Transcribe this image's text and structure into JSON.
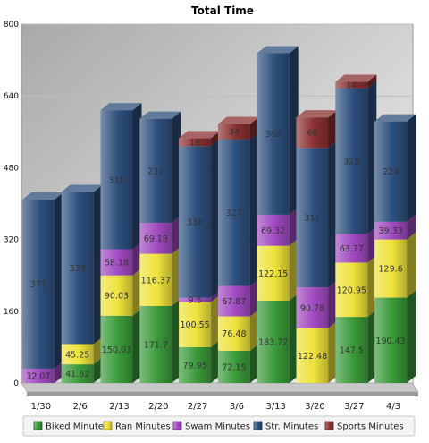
{
  "chart_data": {
    "type": "bar",
    "stacked": true,
    "style": "3d",
    "title": "Total Time",
    "categories": [
      "1/30",
      "2/6",
      "2/13",
      "2/20",
      "2/27",
      "3/6",
      "3/13",
      "3/20",
      "3/27",
      "4/3"
    ],
    "yticks": [
      "0",
      "160",
      "320",
      "480",
      "640",
      "800"
    ],
    "ylim": [
      0,
      800
    ],
    "grid": true,
    "legend_position": "bottom",
    "series": [
      {
        "name": "Biked Minutes",
        "color": "#3a9a3a",
        "values": [
          0,
          41.62,
          150.03,
          171.7,
          79.95,
          72.15,
          183.72,
          0,
          147.5,
          190.43
        ],
        "labels": [
          "",
          "41.62",
          "150.03",
          "171.7",
          "79.95",
          "72.15",
          "183.72",
          "",
          "147.5",
          "190.43"
        ]
      },
      {
        "name": "Ran Minutes",
        "color": "#eee23a",
        "values": [
          0,
          45.25,
          90.03,
          116.37,
          100.55,
          76.48,
          122.15,
          122.48,
          120.95,
          129.6
        ],
        "labels": [
          "",
          "45.25",
          "90.03",
          "116.37",
          "100.55",
          "76.48",
          "122.15",
          "122.48",
          "120.95",
          "129.6"
        ]
      },
      {
        "name": "Swam Minutes",
        "color": "#a04ac0",
        "values": [
          32.07,
          0,
          58.18,
          69.18,
          9.5,
          67.87,
          69.32,
          90.78,
          63.77,
          39.33
        ],
        "labels": [
          "32.07",
          "",
          "58.18",
          "69.18",
          "9.5",
          "67.87",
          "69.32",
          "90.78",
          "63.77",
          "39.33"
        ]
      },
      {
        "name": "Str. Minutes",
        "color": "#2d4f7c",
        "values": [
          377,
          339,
          310,
          232,
          338,
          327,
          360,
          311,
          325,
          224
        ],
        "labels": [
          "377",
          "339",
          "310",
          "232",
          "338",
          "327",
          "360",
          "311",
          "325",
          "224"
        ]
      },
      {
        "name": "Sports Minutes",
        "color": "#8a3030",
        "values": [
          0,
          0,
          0,
          0,
          18,
          34,
          0,
          68,
          14,
          0
        ],
        "labels": [
          "",
          "",
          "",
          "",
          "18",
          "34",
          "",
          "68",
          "14",
          ""
        ]
      }
    ]
  }
}
